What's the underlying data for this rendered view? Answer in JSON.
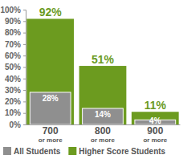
{
  "chart_data": {
    "type": "bar",
    "categories": [
      "700 or more",
      "800 or more",
      "900 or more"
    ],
    "series": [
      {
        "name": "All Students",
        "color": "#8f8f8f",
        "values": [
          28,
          14,
          4
        ],
        "value_labels": [
          "28%",
          "14%",
          "4%"
        ]
      },
      {
        "name": "Higher Score Students",
        "color": "#6c9b1f",
        "values": [
          92,
          51,
          11
        ],
        "value_labels": [
          "92%",
          "51%",
          "11%"
        ]
      }
    ],
    "ylim": [
      0,
      100
    ],
    "yticks": [
      {
        "value": 0,
        "label": "0%"
      },
      {
        "value": 10,
        "label": "10%"
      },
      {
        "value": 20,
        "label": "20%"
      },
      {
        "value": 30,
        "label": "30%"
      },
      {
        "value": 40,
        "label": "40%"
      },
      {
        "value": 50,
        "label": "50%"
      },
      {
        "value": 60,
        "label": "60%"
      },
      {
        "value": 70,
        "label": "70%"
      },
      {
        "value": 80,
        "label": "80%"
      },
      {
        "value": 90,
        "label": "90%"
      },
      {
        "value": 100,
        "label": "100%"
      }
    ],
    "grid": false,
    "legend": "bottom",
    "data_labels": true
  }
}
